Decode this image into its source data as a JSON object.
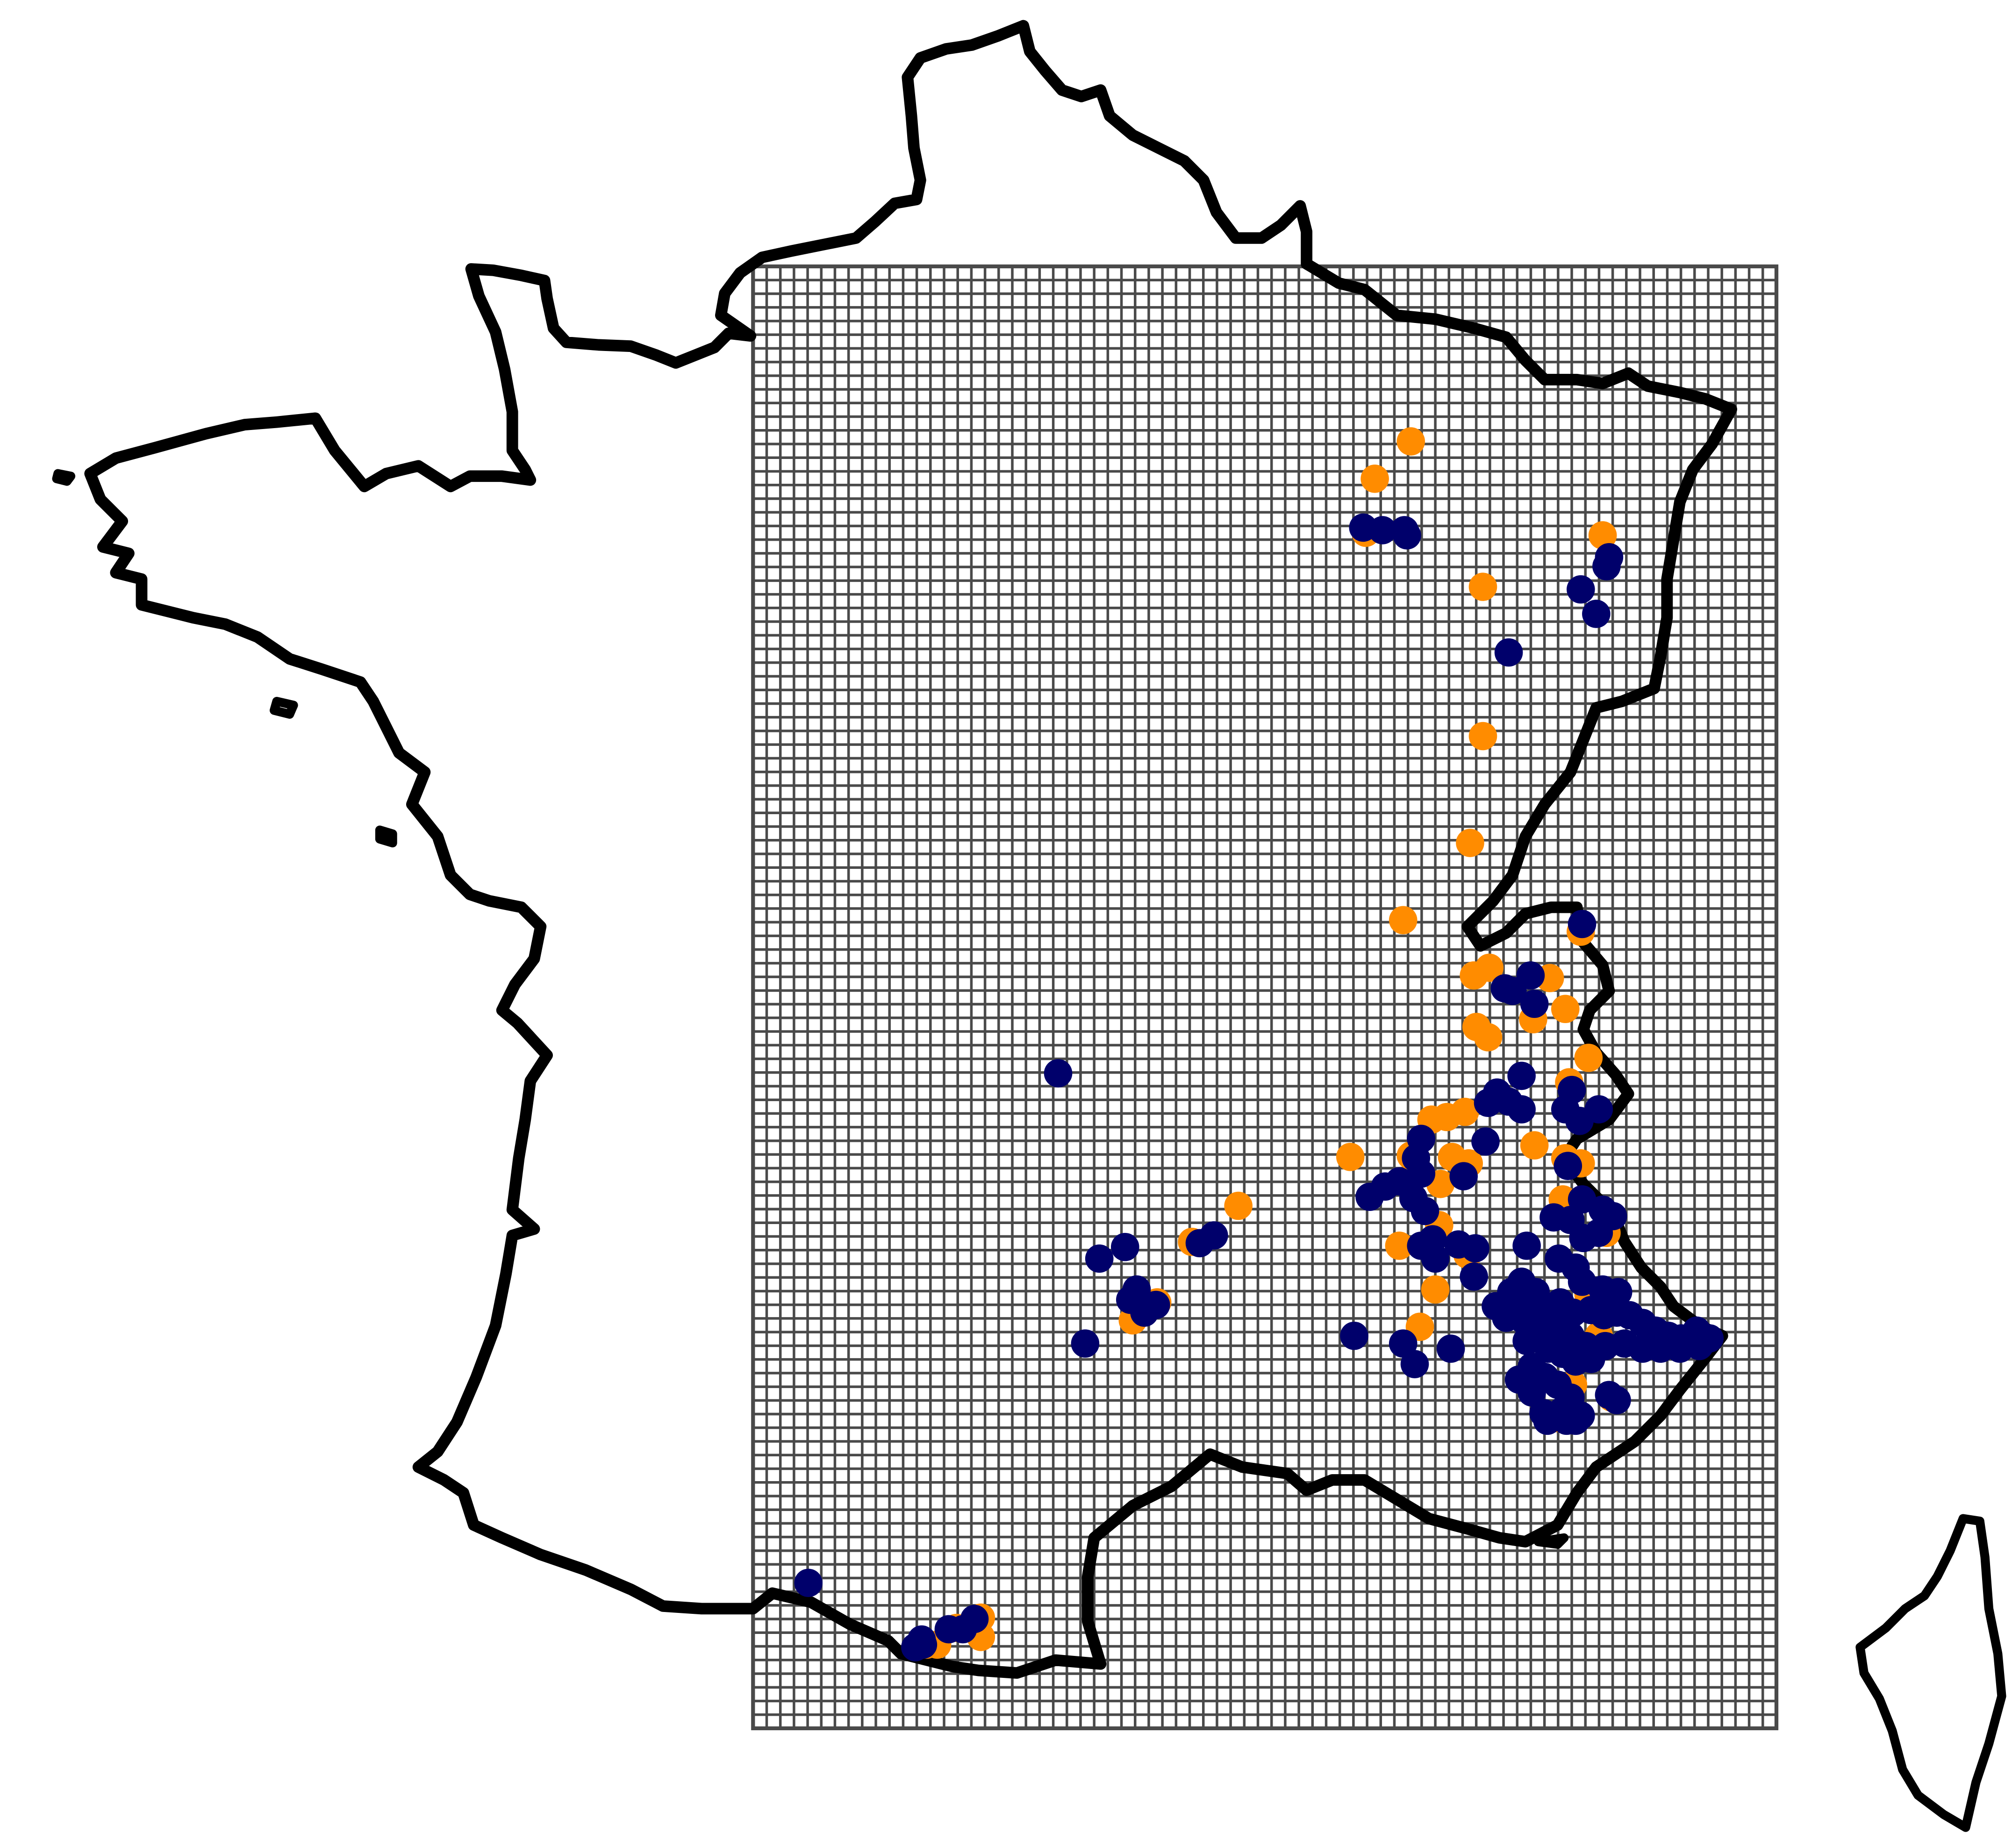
{
  "map": {
    "region": "France",
    "grid": {
      "columns": 75,
      "rows": 107,
      "visible": true
    },
    "series": [
      {
        "key": "orange",
        "color": "#FF8C00",
        "points": [
          [
            1096,
            343
          ],
          [
            1068,
            372
          ],
          [
            1061,
            414
          ],
          [
            1245,
            416
          ],
          [
            1152,
            456
          ],
          [
            1152,
            572
          ],
          [
            1142,
            655
          ],
          [
            1090,
            715
          ],
          [
            1228,
            724
          ],
          [
            1145,
            758
          ],
          [
            1157,
            752
          ],
          [
            1204,
            760
          ],
          [
            1191,
            792
          ],
          [
            1216,
            784
          ],
          [
            1147,
            798
          ],
          [
            1156,
            806
          ],
          [
            1234,
            822
          ],
          [
            1219,
            841
          ],
          [
            1112,
            870
          ],
          [
            1124,
            868
          ],
          [
            1138,
            864
          ],
          [
            1192,
            890
          ],
          [
            1049,
            899
          ],
          [
            1096,
            898
          ],
          [
            1128,
            899
          ],
          [
            1141,
            904
          ],
          [
            1216,
            900
          ],
          [
            1228,
            904
          ],
          [
            1119,
            920
          ],
          [
            1214,
            932
          ],
          [
            962,
            937
          ],
          [
            926,
            965
          ],
          [
            1087,
            968
          ],
          [
            1118,
            952
          ],
          [
            1140,
            975
          ],
          [
            1115,
            1002
          ],
          [
            899,
            1012
          ],
          [
            880,
            1026
          ],
          [
            1103,
            1031
          ],
          [
            1242,
            1038
          ],
          [
            1248,
            958
          ],
          [
            1234,
            1006
          ],
          [
            1222,
            1076
          ],
          [
            1252,
            1086
          ],
          [
            1208,
            1102
          ],
          [
            743,
            1265
          ],
          [
            762,
            1257
          ],
          [
            762,
            1272
          ],
          [
            728,
            1278
          ],
          [
            720,
            1278
          ]
        ]
      },
      {
        "key": "navy",
        "color": "#00006B",
        "points": [
          [
            1059,
            410
          ],
          [
            1074,
            412
          ],
          [
            1091,
            412
          ],
          [
            1093,
            416
          ],
          [
            1250,
            433
          ],
          [
            1248,
            440
          ],
          [
            1228,
            458
          ],
          [
            1240,
            477
          ],
          [
            1172,
            507
          ],
          [
            1229,
            718
          ],
          [
            1189,
            758
          ],
          [
            1175,
            770
          ],
          [
            1192,
            780
          ],
          [
            1169,
            768
          ],
          [
            822,
            834
          ],
          [
            1182,
            836
          ],
          [
            1163,
            849
          ],
          [
            1156,
            857
          ],
          [
            1221,
            847
          ],
          [
            1172,
            856
          ],
          [
            1182,
            862
          ],
          [
            1216,
            862
          ],
          [
            1242,
            862
          ],
          [
            1227,
            871
          ],
          [
            1104,
            885
          ],
          [
            1154,
            887
          ],
          [
            1100,
            900
          ],
          [
            1104,
            912
          ],
          [
            1137,
            914
          ],
          [
            1218,
            906
          ],
          [
            1087,
            918
          ],
          [
            1076,
            922
          ],
          [
            1064,
            930
          ],
          [
            1098,
            931
          ],
          [
            1107,
            941
          ],
          [
            1229,
            932
          ],
          [
            1245,
            940
          ],
          [
            1253,
            945
          ],
          [
            1220,
            948
          ],
          [
            1207,
            946
          ],
          [
            1113,
            963
          ],
          [
            1133,
            967
          ],
          [
            1146,
            970
          ],
          [
            1104,
            968
          ],
          [
            1230,
            962
          ],
          [
            1186,
            968
          ],
          [
            1242,
            958
          ],
          [
            874,
            969
          ],
          [
            854,
            978
          ],
          [
            943,
            960
          ],
          [
            932,
            966
          ],
          [
            1115,
            978
          ],
          [
            1145,
            992
          ],
          [
            1211,
            978
          ],
          [
            1224,
            985
          ],
          [
            1182,
            996
          ],
          [
            1193,
            1004
          ],
          [
            1174,
            1004
          ],
          [
            1229,
            996
          ],
          [
            1245,
            1002
          ],
          [
            1257,
            1004
          ],
          [
            883,
            1002
          ],
          [
            898,
            1014
          ],
          [
            878,
            1010
          ],
          [
            889,
            1020
          ],
          [
            1162,
            1015
          ],
          [
            1174,
            1018
          ],
          [
            1191,
            1016
          ],
          [
            1202,
            1018
          ],
          [
            1212,
            1012
          ],
          [
            1222,
            1020
          ],
          [
            1236,
            1018
          ],
          [
            1246,
            1022
          ],
          [
            1256,
            1020
          ],
          [
            1266,
            1022
          ],
          [
            1276,
            1028
          ],
          [
            1286,
            1034
          ],
          [
            1296,
            1038
          ],
          [
            1306,
            1040
          ],
          [
            1318,
            1034
          ],
          [
            1328,
            1040
          ],
          [
            1320,
            1046
          ],
          [
            1305,
            1048
          ],
          [
            1290,
            1048
          ],
          [
            1276,
            1048
          ],
          [
            1262,
            1044
          ],
          [
            1247,
            1046
          ],
          [
            1232,
            1046
          ],
          [
            1220,
            1038
          ],
          [
            1206,
            1032
          ],
          [
            1196,
            1030
          ],
          [
            1184,
            1026
          ],
          [
            1170,
            1024
          ],
          [
            843,
            1044
          ],
          [
            1052,
            1038
          ],
          [
            1090,
            1044
          ],
          [
            1127,
            1048
          ],
          [
            1099,
            1060
          ],
          [
            1186,
            1042
          ],
          [
            1203,
            1048
          ],
          [
            1214,
            1052
          ],
          [
            1224,
            1058
          ],
          [
            1236,
            1056
          ],
          [
            1190,
            1062
          ],
          [
            1200,
            1070
          ],
          [
            1180,
            1072
          ],
          [
            1210,
            1076
          ],
          [
            1190,
            1082
          ],
          [
            1220,
            1086
          ],
          [
            1250,
            1084
          ],
          [
            1256,
            1088
          ],
          [
            1199,
            1098
          ],
          [
            1214,
            1096
          ],
          [
            1228,
            1100
          ],
          [
            1202,
            1104
          ],
          [
            1217,
            1104
          ],
          [
            1224,
            1104
          ],
          [
            628,
            1230
          ],
          [
            757,
            1258
          ],
          [
            737,
            1266
          ],
          [
            748,
            1266
          ],
          [
            716,
            1274
          ],
          [
            711,
            1280
          ],
          [
            717,
            1278
          ]
        ]
      }
    ]
  }
}
